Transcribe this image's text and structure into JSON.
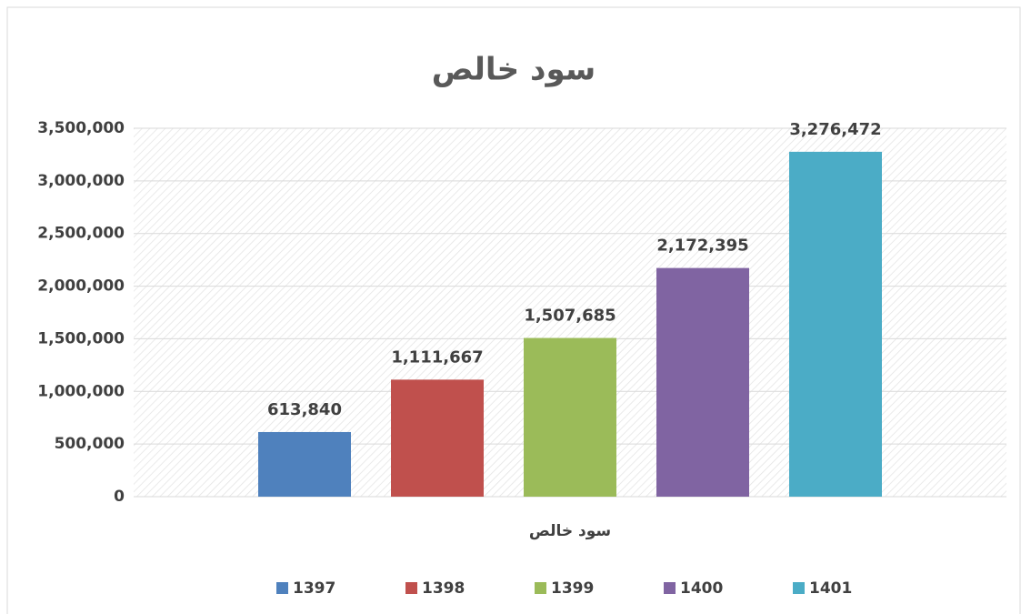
{
  "chart_data": {
    "type": "bar",
    "title": "سود خالص",
    "categories": [
      "سود خالص"
    ],
    "series": [
      {
        "name": "1397",
        "color": "#4f81bd",
        "values": [
          613840
        ],
        "value_labels": [
          "613,840"
        ]
      },
      {
        "name": "1398",
        "color": "#c0504d",
        "values": [
          1111667
        ],
        "value_labels": [
          "1,111,667"
        ]
      },
      {
        "name": "1399",
        "color": "#9bbb59",
        "values": [
          1507685
        ],
        "value_labels": [
          "1,507,685"
        ]
      },
      {
        "name": "1400",
        "color": "#8064a2",
        "values": [
          2172395
        ],
        "value_labels": [
          "2,172,395"
        ]
      },
      {
        "name": "1401",
        "color": "#4bacc6",
        "values": [
          3276472
        ],
        "value_labels": [
          "3,276,472"
        ]
      }
    ],
    "ylim": [
      0,
      3500000
    ],
    "yticks": [
      0,
      {
        "value": 500000,
        "label": "500,000"
      },
      {
        "value": 1000000,
        "label": "1,000,000"
      },
      {
        "value": 1500000,
        "label": "1,500,000"
      },
      {
        "value": 2000000,
        "label": "2,000,000"
      },
      {
        "value": 2500000,
        "label": "2,500,000"
      },
      {
        "value": 3000000,
        "label": "3,000,000"
      },
      {
        "value": 3500000,
        "label": "3,500,000"
      }
    ],
    "grid": true,
    "legend": "bottom"
  }
}
